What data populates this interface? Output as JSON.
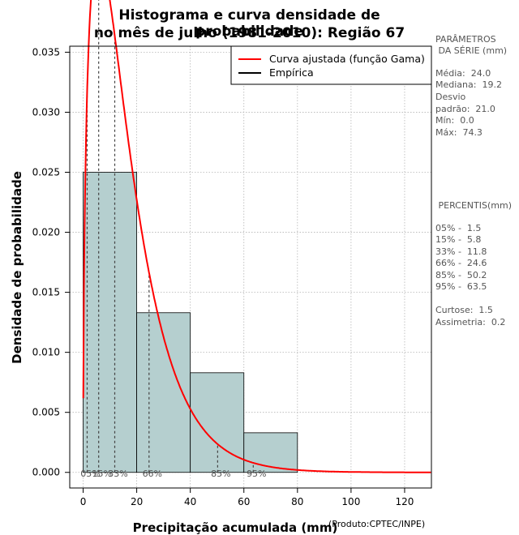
{
  "chart_data": {
    "type": "bar",
    "title_line1": "Histograma e curva densidade de probabilidade",
    "title_line2": "no mês de julho (1981-2010): Região 67",
    "xlabel": "Precipitação acumulada (mm)",
    "ylabel": "Densidade de probabilidade",
    "product": "(Produto:CPTEC/INPE)",
    "xlim": [
      -5,
      130
    ],
    "ylim": [
      -0.0013,
      0.0355
    ],
    "x_ticks": [
      0,
      20,
      40,
      60,
      80,
      100,
      120
    ],
    "y_ticks": [
      0.0,
      0.005,
      0.01,
      0.015,
      0.02,
      0.025,
      0.03,
      0.035
    ],
    "y_tick_labels": [
      "0.000",
      "0.005",
      "0.010",
      "0.015",
      "0.020",
      "0.025",
      "0.030",
      "0.035"
    ],
    "grid": true,
    "histogram": {
      "bin_edges": [
        0,
        20,
        40,
        60,
        80
      ],
      "densities": [
        0.025,
        0.0133,
        0.0083,
        0.0033
      ],
      "color": "#b5cfcf"
    },
    "fitted_curve": {
      "name": "Curva ajustada (função Gama)",
      "color": "#ff0000",
      "shape": 1.52,
      "scale": 11.0
    },
    "percentile_lines": [
      {
        "label": "05%",
        "x": 1.5
      },
      {
        "label": "15%",
        "x": 5.8
      },
      {
        "label": "33%",
        "x": 11.8
      },
      {
        "label": "66%",
        "x": 24.6
      },
      {
        "label": "85%",
        "x": 50.2
      },
      {
        "label": "95%",
        "x": 63.5
      }
    ],
    "legend": {
      "position": "top-right",
      "entries": [
        {
          "label": "Curva ajustada (função Gama)",
          "color": "#ff0000"
        },
        {
          "label": "Empírica",
          "color": "#000000"
        }
      ]
    }
  },
  "params": {
    "heading1": "PARÂMETROS",
    "heading2": " DA SÉRIE (mm)",
    "lines": [
      "Média:  24.0",
      "Mediana:  19.2",
      "Desvio",
      "padrão:  21.0",
      "Mín:  0.0",
      "Máx:  74.3"
    ]
  },
  "percentis": {
    "heading": " PERCENTIS(mm)",
    "lines": [
      "05% -  1.5",
      "15% -  5.8",
      "33% -  11.8",
      "66% -  24.6",
      "85% -  50.2",
      "95% -  63.5"
    ]
  },
  "stats": {
    "lines": [
      "Curtose:  1.5",
      "Assimetria:  0.2"
    ]
  }
}
